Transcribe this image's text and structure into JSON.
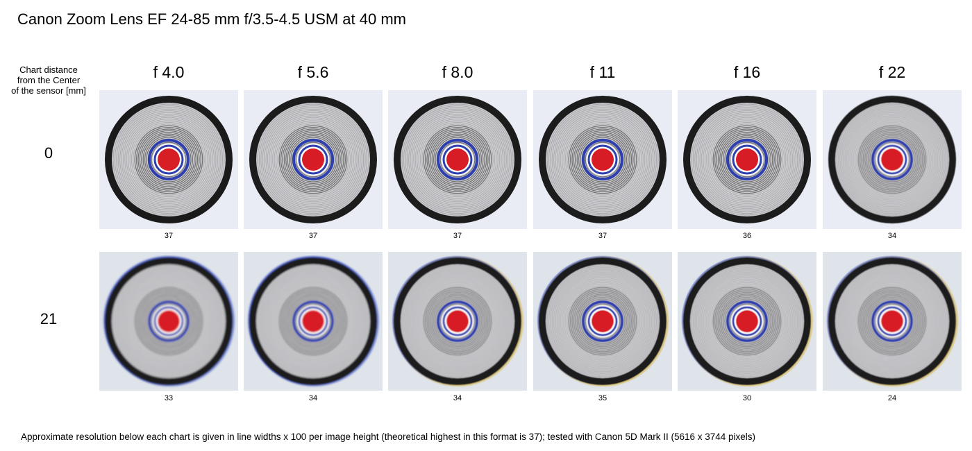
{
  "title": "Canon Zoom Lens EF 24-85 mm f/3.5-4.5 USM at 40 mm",
  "row_header_lines": [
    "Chart distance",
    "from the Center",
    "of the sensor [mm]"
  ],
  "apertures": [
    "f 4.0",
    "f 5.6",
    "f 8.0",
    "f 11",
    "f 16",
    "f 22"
  ],
  "rows": [
    {
      "distance": "0",
      "resolution": [
        "37",
        "37",
        "37",
        "37",
        "36",
        "34"
      ],
      "blur": [
        0,
        0.05,
        0.1,
        0.2,
        0.35,
        0.6
      ],
      "tint": "#e9ecf5"
    },
    {
      "distance": "21",
      "resolution": [
        "33",
        "34",
        "34",
        "35",
        "30",
        "24"
      ],
      "blur": [
        1.4,
        1.1,
        0.8,
        0.6,
        0.6,
        0.8
      ],
      "tint": "#dfe3ea"
    }
  ],
  "footnote": "Approximate resolution below each chart is given in line widths x 100 per image height (theoretical highest in this format is 37); tested with Canon 5D Mark II (5616 x 3744 pixels)",
  "colors": {
    "target_center": "#d81e25",
    "target_ring_blue": "#2f3fb0",
    "target_ring_dark": "#1a1a1a",
    "target_field": "#c9c9cd",
    "fringe_blue": "#3d55c8",
    "fringe_yellow": "#d9b840"
  }
}
